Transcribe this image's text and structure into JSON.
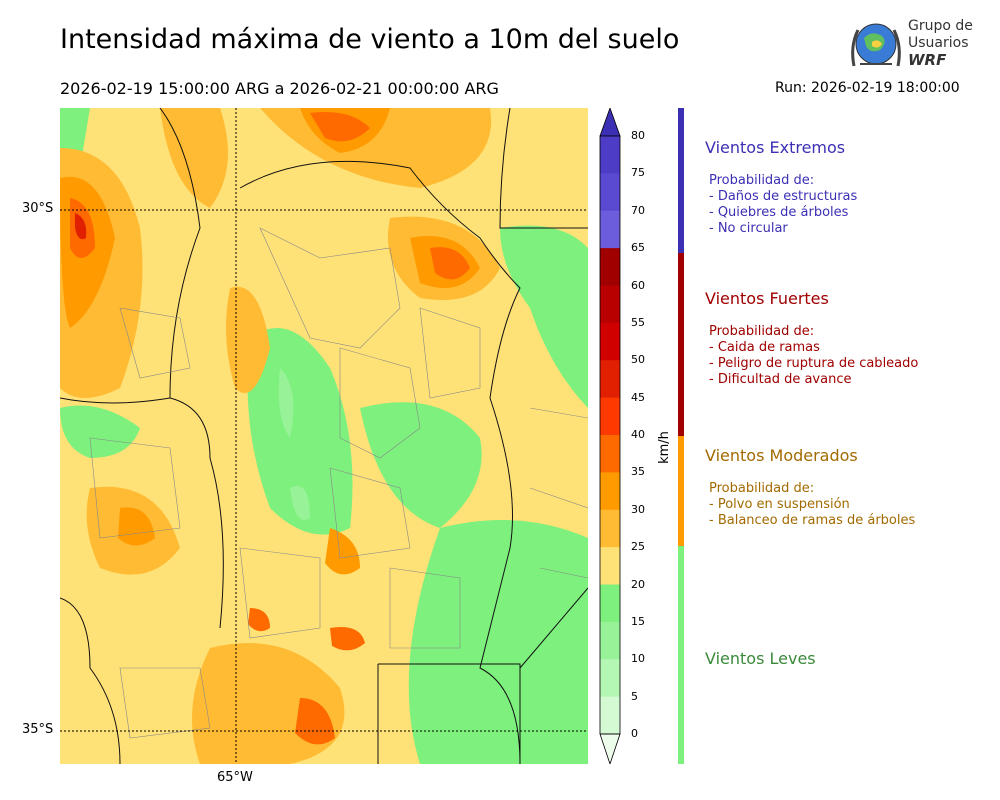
{
  "title": "Intensidad máxima de viento a 10m del suelo",
  "period": "2026-02-19 15:00:00 ARG  a  2026-02-21 00:00:00 ARG",
  "run": "Run: 2026-02-19 18:00:00",
  "logo": {
    "line1": "Grupo de",
    "line2": "Usuarios",
    "line3": "WRF"
  },
  "map": {
    "lat_labels": [
      "30°S",
      "35°S"
    ],
    "lon_labels": [
      "65°W"
    ]
  },
  "colorbar": {
    "unit": "km/h",
    "ticks": [
      "80",
      "75",
      "70",
      "65",
      "60",
      "55",
      "50",
      "45",
      "40",
      "35",
      "30",
      "25",
      "20",
      "15",
      "10",
      "5",
      "0"
    ],
    "colors": [
      "#3b2fb4",
      "#4c3cc6",
      "#5a4ad2",
      "#6c5ddc",
      "#a00000",
      "#b80000",
      "#d00000",
      "#e02000",
      "#ff3a00",
      "#ff6a00",
      "#ff9a00",
      "#ffbb33",
      "#ffe277",
      "#7df07d",
      "#98f398",
      "#b4f6b4",
      "#d4fad4",
      "#ecfdec"
    ]
  },
  "categories": [
    {
      "title": "Vientos Extremos",
      "color": "#3b2fb4",
      "lines": [
        "Probabilidad de:",
        "- Daños de estructuras",
        "- Quiebres de árboles",
        "- No circular"
      ]
    },
    {
      "title": "Vientos Fuertes",
      "color": "#a00000",
      "lines": [
        "Probabilidad de:",
        "- Caida de ramas",
        "- Peligro de ruptura de cableado",
        "- Dificultad de avance"
      ]
    },
    {
      "title": "Vientos Moderados",
      "color": "#a36a00",
      "lines": [
        "Probabilidad de:",
        "- Polvo en suspensión",
        "- Balanceo de ramas de árboles"
      ]
    },
    {
      "title": "Vientos Leves",
      "color": "#3a8a3a",
      "lines": []
    }
  ],
  "bar_colors": [
    "#3b2fb4",
    "#a00000",
    "#ff9a00",
    "#7df07d"
  ]
}
